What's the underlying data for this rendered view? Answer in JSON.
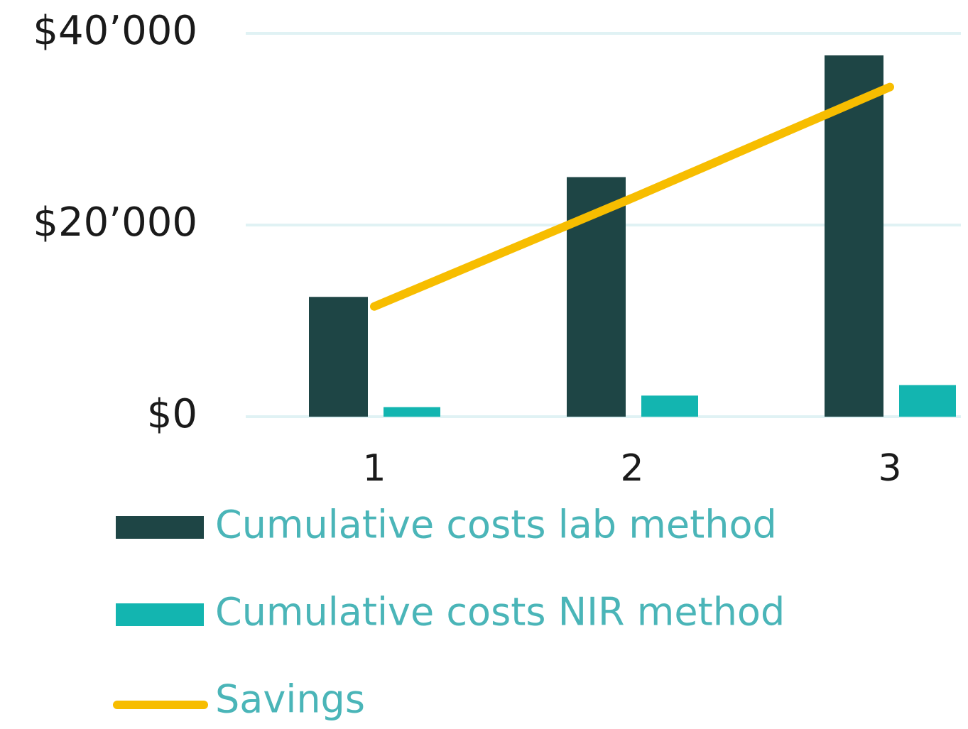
{
  "chart_data": {
    "type": "bar",
    "categories": [
      "1",
      "2",
      "3"
    ],
    "series": [
      {
        "name": "Cumulative costs lab method",
        "color": "#1e4545",
        "type": "bar",
        "values": [
          12500,
          25000,
          37700
        ]
      },
      {
        "name": "Cumulative costs NIR method",
        "color": "#13b5b0",
        "type": "bar",
        "values": [
          1000,
          2200,
          3300
        ]
      },
      {
        "name": "Savings",
        "color": "#f7bd00",
        "type": "line",
        "values": [
          11500,
          22800,
          34400
        ]
      }
    ],
    "ylim": [
      0,
      40000
    ],
    "yticks": [
      {
        "value": 0,
        "label": "$0"
      },
      {
        "value": 20000,
        "label": "$20’000"
      },
      {
        "value": 40000,
        "label": "$40’000"
      }
    ],
    "grid": true,
    "grid_color": "#e0f2f4",
    "legend": "bottom"
  }
}
